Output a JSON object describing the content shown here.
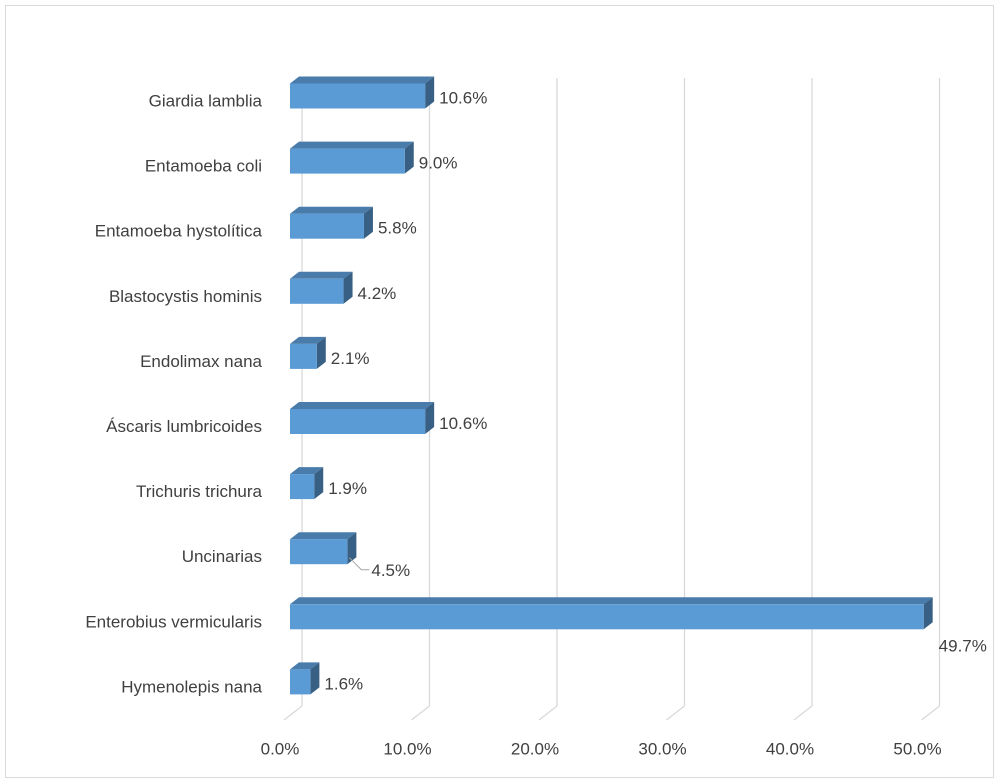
{
  "chart_data": {
    "type": "bar",
    "orientation": "horizontal",
    "three_d": true,
    "categories": [
      "Giardia lamblia",
      "Entamoeba coli",
      "Entamoeba hystolítica",
      "Blastocystis hominis",
      "Endolimax nana",
      "Áscaris lumbricoides",
      "Trichuris trichura",
      "Uncinarias",
      "Enterobius vermicularis",
      "Hymenolepis nana"
    ],
    "values": [
      10.6,
      9.0,
      5.8,
      4.2,
      2.1,
      10.6,
      1.9,
      4.5,
      49.7,
      1.6
    ],
    "value_labels": [
      "10.6%",
      "9.0%",
      "5.8%",
      "4.2%",
      "2.1%",
      "10.6%",
      "1.9%",
      "4.5%",
      "49.7%",
      "1.6%"
    ],
    "color": "#5b9bd5",
    "xlim": [
      0,
      50
    ],
    "xticks": [
      {
        "value": 0,
        "label": "0.0%"
      },
      {
        "value": 10,
        "label": "10.0%"
      },
      {
        "value": 20,
        "label": "20.0%"
      },
      {
        "value": 30,
        "label": "30.0%"
      },
      {
        "value": 40,
        "label": "40.0%"
      },
      {
        "value": 50,
        "label": "50.0%"
      }
    ],
    "grid": true
  }
}
